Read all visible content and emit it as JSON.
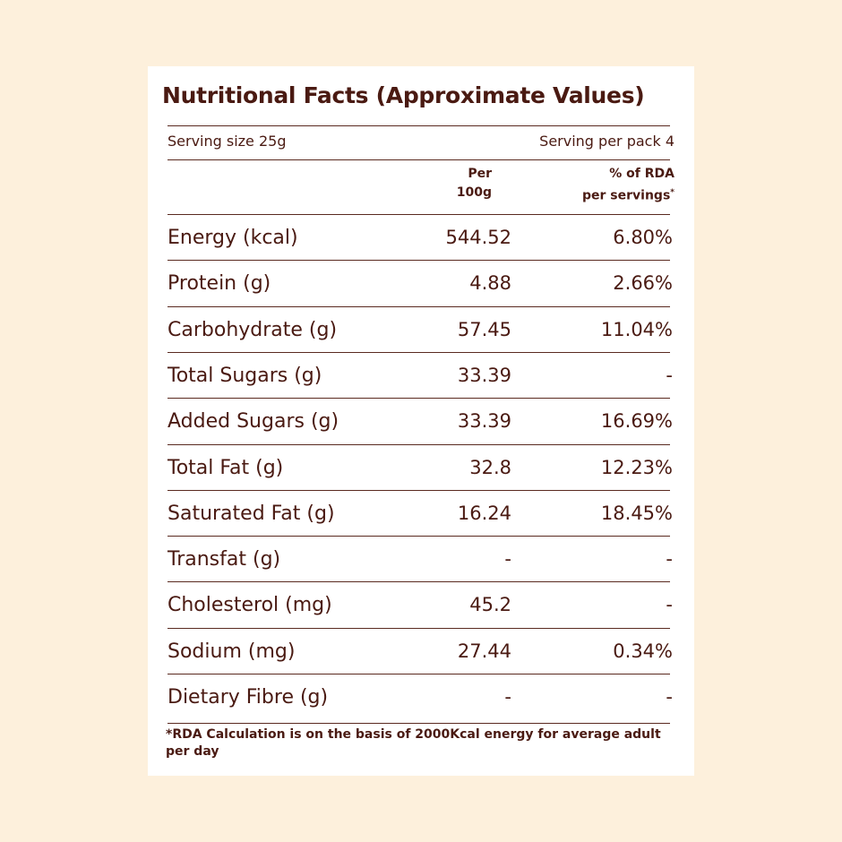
{
  "title": "Nutritional Facts (Approximate Values)",
  "serving": {
    "size": "Serving size 25g",
    "per_pack": "Serving per pack 4"
  },
  "columns": {
    "per100_line1": "Per",
    "per100_line2": "100g",
    "rda_line1": "% of RDA",
    "rda_line2": "per servings",
    "rda_mark": "*"
  },
  "rows": [
    {
      "name": "Energy (kcal)",
      "per100": "544.52",
      "rda": "6.80%"
    },
    {
      "name": "Protein (g)",
      "per100": "4.88",
      "rda": "2.66%"
    },
    {
      "name": "Carbohydrate (g)",
      "per100": "57.45",
      "rda": "11.04%"
    },
    {
      "name": "Total Sugars (g)",
      "per100": "33.39",
      "rda": "-"
    },
    {
      "name": "Added Sugars (g)",
      "per100": "33.39",
      "rda": "16.69%"
    },
    {
      "name": "Total Fat (g)",
      "per100": "32.8",
      "rda": "12.23%"
    },
    {
      "name": "Saturated Fat (g)",
      "per100": "16.24",
      "rda": "18.45%"
    },
    {
      "name": "Transfat (g)",
      "per100": "-",
      "rda": "-"
    },
    {
      "name": "Cholesterol (mg)",
      "per100": "45.2",
      "rda": "-"
    },
    {
      "name": "Sodium (mg)",
      "per100": "27.44",
      "rda": "0.34%"
    },
    {
      "name": "Dietary Fibre (g)",
      "per100": "-",
      "rda": "-"
    }
  ],
  "footnote": "*RDA Calculation is on the basis of 2000Kcal energy for average adult per day"
}
